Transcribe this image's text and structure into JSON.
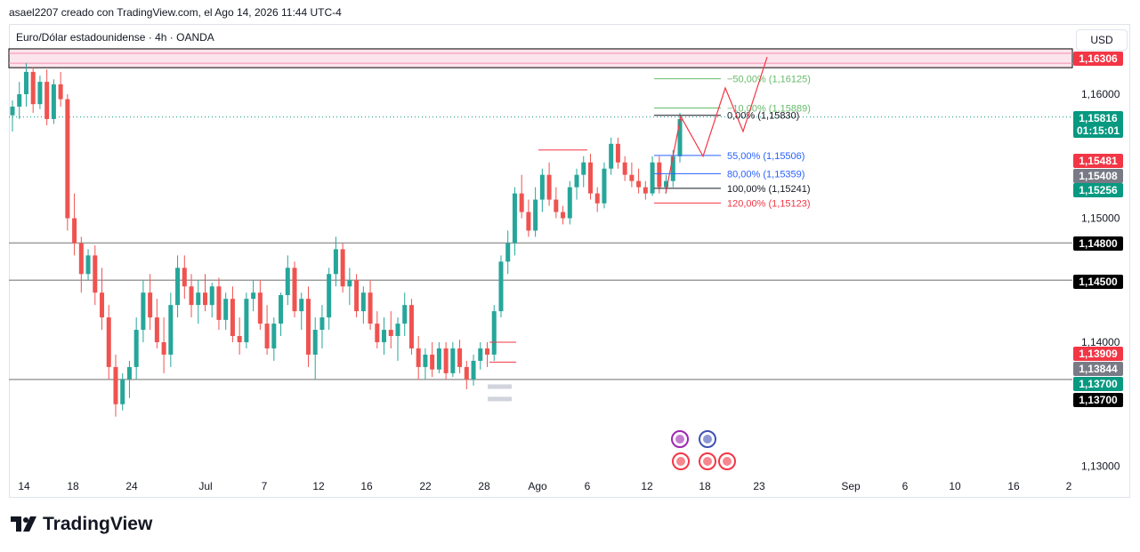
{
  "header": {
    "caption": "asael2207 creado con TradingView.com, el Ago 14, 2026 11:44 UTC-4"
  },
  "symbol": {
    "label": "Euro/Dólar estadounidense · 4h · OANDA"
  },
  "currency": {
    "label": "USD"
  },
  "footer": {
    "brand": "TradingView"
  },
  "colors": {
    "up": "#26a69a",
    "down": "#ef5350",
    "fib_green": "#66bb6a",
    "fib_blue": "#2962ff",
    "fib_red": "#f23645",
    "zone": "#f48fb1"
  },
  "chart_data": {
    "type": "candlestick",
    "price_ticks": [
      "1,16000",
      "1,15000",
      "1,14000",
      "1,13000"
    ],
    "time_ticks": [
      "14",
      "18",
      "24",
      "Jul",
      "7",
      "12",
      "16",
      "22",
      "28",
      "Ago",
      "6",
      "12",
      "18",
      "23",
      "Sep",
      "6",
      "10",
      "16",
      "2"
    ],
    "horizontal_levels": [
      {
        "price": 1.148,
        "label": "1,14800"
      },
      {
        "price": 1.145,
        "label": "1,14500"
      },
      {
        "price": 1.137,
        "label": "1,13700"
      }
    ],
    "resistance_zone": {
      "low": 1.1625,
      "high": 1.1633,
      "label": "1,16306"
    },
    "fibonacci": [
      {
        "ratio": "-50,00%",
        "price": "1,16125",
        "text": "−50,00% (1,16125)",
        "color": "fib_green"
      },
      {
        "ratio": "-10,00%",
        "price": "1,15889",
        "text": "−10,00% (1,15889)",
        "color": "fib_green"
      },
      {
        "ratio": "0,00%",
        "price": "1,15830",
        "text": "0,00% (1,15830)",
        "color": "black"
      },
      {
        "ratio": "55,00%",
        "price": "1,15506",
        "text": "55,00% (1,15506)",
        "color": "fib_blue"
      },
      {
        "ratio": "80,00%",
        "price": "1,15359",
        "text": "80,00% (1,15359)",
        "color": "fib_blue"
      },
      {
        "ratio": "100,00%",
        "price": "1,15241",
        "text": "100,00% (1,15241)",
        "color": "black"
      },
      {
        "ratio": "120,00%",
        "price": "1,15123",
        "text": "120,00% (1,15123)",
        "color": "fib_red"
      }
    ],
    "price_labels": [
      {
        "text": "1,16306",
        "bg": "#f23645"
      },
      {
        "text": "1,15816",
        "bg": "#089981"
      },
      {
        "text": "01:15:01",
        "bg": "#089981"
      },
      {
        "text": "1,15481",
        "bg": "#f23645"
      },
      {
        "text": "1,15408",
        "bg": "#787b86"
      },
      {
        "text": "1,15256",
        "bg": "#089981"
      },
      {
        "text": "1,14800",
        "bg": "#000000"
      },
      {
        "text": "1,14500",
        "bg": "#000000"
      },
      {
        "text": "1,13909",
        "bg": "#f23645"
      },
      {
        "text": "1,13844",
        "bg": "#787b86"
      },
      {
        "text": "1,13700",
        "bg": "#089981"
      },
      {
        "text": "1,13700",
        "bg": "#000000"
      }
    ],
    "projection_path": [
      1.152,
      1.1582,
      1.155,
      1.1605,
      1.157,
      1.163
    ],
    "candles": [
      [
        1.1583,
        1.1595,
        1.157,
        1.159
      ],
      [
        1.159,
        1.161,
        1.158,
        1.16
      ],
      [
        1.16,
        1.1625,
        1.159,
        1.1618
      ],
      [
        1.1618,
        1.1622,
        1.1585,
        1.1592
      ],
      [
        1.1592,
        1.1615,
        1.1588,
        1.161
      ],
      [
        1.161,
        1.162,
        1.1575,
        1.158
      ],
      [
        1.158,
        1.1612,
        1.1576,
        1.1608
      ],
      [
        1.1608,
        1.1618,
        1.159,
        1.1596
      ],
      [
        1.1596,
        1.16,
        1.149,
        1.15
      ],
      [
        1.15,
        1.152,
        1.147,
        1.148
      ],
      [
        1.148,
        1.1485,
        1.144,
        1.1455
      ],
      [
        1.1455,
        1.1475,
        1.145,
        1.147
      ],
      [
        1.147,
        1.1478,
        1.143,
        1.144
      ],
      [
        1.144,
        1.146,
        1.141,
        1.142
      ],
      [
        1.142,
        1.143,
        1.137,
        1.138
      ],
      [
        1.138,
        1.139,
        1.134,
        1.135
      ],
      [
        1.135,
        1.1375,
        1.1345,
        1.137
      ],
      [
        1.137,
        1.1385,
        1.1355,
        1.138
      ],
      [
        1.138,
        1.142,
        1.137,
        1.141
      ],
      [
        1.141,
        1.145,
        1.14,
        1.144
      ],
      [
        1.144,
        1.1455,
        1.141,
        1.142
      ],
      [
        1.142,
        1.1435,
        1.1395,
        1.14
      ],
      [
        1.14,
        1.142,
        1.1375,
        1.139
      ],
      [
        1.139,
        1.144,
        1.138,
        1.143
      ],
      [
        1.143,
        1.147,
        1.142,
        1.146
      ],
      [
        1.146,
        1.147,
        1.1435,
        1.1445
      ],
      [
        1.1445,
        1.1455,
        1.142,
        1.143
      ],
      [
        1.143,
        1.145,
        1.1415,
        1.144
      ],
      [
        1.144,
        1.1455,
        1.1425,
        1.143
      ],
      [
        1.143,
        1.1448,
        1.142,
        1.1445
      ],
      [
        1.1445,
        1.1452,
        1.141,
        1.1418
      ],
      [
        1.1418,
        1.144,
        1.141,
        1.1435
      ],
      [
        1.1435,
        1.1445,
        1.14,
        1.1405
      ],
      [
        1.1405,
        1.142,
        1.139,
        1.14
      ],
      [
        1.14,
        1.144,
        1.1395,
        1.1435
      ],
      [
        1.1435,
        1.145,
        1.1425,
        1.144
      ],
      [
        1.144,
        1.145,
        1.141,
        1.1415
      ],
      [
        1.1415,
        1.143,
        1.139,
        1.1395
      ],
      [
        1.1395,
        1.142,
        1.1385,
        1.1415
      ],
      [
        1.1415,
        1.144,
        1.1405,
        1.1438
      ],
      [
        1.1438,
        1.147,
        1.143,
        1.146
      ],
      [
        1.146,
        1.1465,
        1.142,
        1.1425
      ],
      [
        1.1425,
        1.144,
        1.141,
        1.1435
      ],
      [
        1.1435,
        1.1445,
        1.138,
        1.139
      ],
      [
        1.139,
        1.142,
        1.137,
        1.141
      ],
      [
        1.141,
        1.143,
        1.1395,
        1.142
      ],
      [
        1.142,
        1.146,
        1.141,
        1.1455
      ],
      [
        1.1455,
        1.1485,
        1.1445,
        1.1475
      ],
      [
        1.1475,
        1.148,
        1.144,
        1.1445
      ],
      [
        1.1445,
        1.146,
        1.143,
        1.145
      ],
      [
        1.145,
        1.1455,
        1.142,
        1.1425
      ],
      [
        1.1425,
        1.1445,
        1.1415,
        1.144
      ],
      [
        1.144,
        1.145,
        1.141,
        1.1415
      ],
      [
        1.1415,
        1.1425,
        1.1395,
        1.14
      ],
      [
        1.14,
        1.142,
        1.139,
        1.141
      ],
      [
        1.141,
        1.1425,
        1.1395,
        1.1405
      ],
      [
        1.1405,
        1.142,
        1.1385,
        1.1415
      ],
      [
        1.1415,
        1.144,
        1.1405,
        1.143
      ],
      [
        1.143,
        1.1435,
        1.139,
        1.1395
      ],
      [
        1.1395,
        1.1405,
        1.137,
        1.138
      ],
      [
        1.138,
        1.1395,
        1.137,
        1.139
      ],
      [
        1.139,
        1.14,
        1.1372,
        1.1378
      ],
      [
        1.1378,
        1.14,
        1.1375,
        1.1395
      ],
      [
        1.1395,
        1.14,
        1.137,
        1.1375
      ],
      [
        1.1375,
        1.14,
        1.1372,
        1.1395
      ],
      [
        1.1395,
        1.1402,
        1.1375,
        1.138
      ],
      [
        1.138,
        1.1385,
        1.1362,
        1.137
      ],
      [
        1.137,
        1.139,
        1.1365,
        1.1385
      ],
      [
        1.1385,
        1.14,
        1.1378,
        1.1395
      ],
      [
        1.1395,
        1.14,
        1.138,
        1.139
      ],
      [
        1.139,
        1.143,
        1.1385,
        1.1425
      ],
      [
        1.1425,
        1.147,
        1.142,
        1.1465
      ],
      [
        1.1465,
        1.149,
        1.1455,
        1.148
      ],
      [
        1.148,
        1.1525,
        1.147,
        1.152
      ],
      [
        1.152,
        1.1535,
        1.15,
        1.1505
      ],
      [
        1.1505,
        1.1515,
        1.1485,
        1.149
      ],
      [
        1.149,
        1.1525,
        1.1485,
        1.1515
      ],
      [
        1.1515,
        1.154,
        1.1505,
        1.1535
      ],
      [
        1.1535,
        1.1545,
        1.151,
        1.1515
      ],
      [
        1.1515,
        1.1525,
        1.15,
        1.1505
      ],
      [
        1.1505,
        1.151,
        1.1495,
        1.15
      ],
      [
        1.15,
        1.153,
        1.1495,
        1.1525
      ],
      [
        1.1525,
        1.154,
        1.1515,
        1.1535
      ],
      [
        1.1535,
        1.155,
        1.1525,
        1.1545
      ],
      [
        1.1545,
        1.1552,
        1.1515,
        1.152
      ],
      [
        1.152,
        1.1525,
        1.1505,
        1.1512
      ],
      [
        1.1512,
        1.1545,
        1.1508,
        1.154
      ],
      [
        1.154,
        1.1565,
        1.1535,
        1.156
      ],
      [
        1.156,
        1.1565,
        1.154,
        1.1545
      ],
      [
        1.1545,
        1.155,
        1.153,
        1.1535
      ],
      [
        1.1535,
        1.1545,
        1.1525,
        1.153
      ],
      [
        1.153,
        1.154,
        1.152,
        1.1525
      ],
      [
        1.1525,
        1.153,
        1.1515,
        1.152
      ],
      [
        1.152,
        1.155,
        1.1518,
        1.1545
      ],
      [
        1.1545,
        1.155,
        1.152,
        1.1525
      ],
      [
        1.1525,
        1.1535,
        1.152,
        1.153
      ],
      [
        1.153,
        1.1555,
        1.1525,
        1.155
      ],
      [
        1.155,
        1.1585,
        1.1545,
        1.158
      ]
    ]
  }
}
